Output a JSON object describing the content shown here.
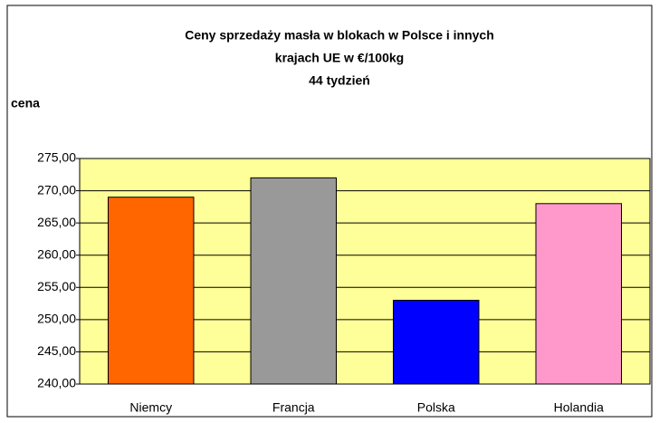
{
  "chart_data": {
    "type": "bar",
    "title": [
      "Ceny sprzedaży masła w blokach w Polsce i  innych",
      "krajach UE w €/100kg",
      "44 tydzień"
    ],
    "y_label": "cena",
    "categories": [
      "Niemcy",
      "Francja",
      "Polska",
      "Holandia"
    ],
    "values": [
      269,
      272,
      253,
      268
    ],
    "colors": [
      "#ff6600",
      "#999999",
      "#0000ff",
      "#ff99cc"
    ],
    "ylim": [
      240,
      275
    ],
    "yticks": [
      {
        "value": 240,
        "label": "240,00"
      },
      {
        "value": 245,
        "label": "245,00"
      },
      {
        "value": 250,
        "label": "250,00"
      },
      {
        "value": 255,
        "label": "255,00"
      },
      {
        "value": 260,
        "label": "260,00"
      },
      {
        "value": 265,
        "label": "265,00"
      },
      {
        "value": 270,
        "label": "270,00"
      },
      {
        "value": 275,
        "label": "275,00"
      }
    ],
    "grid": true,
    "plot_background": "#ffff99"
  }
}
